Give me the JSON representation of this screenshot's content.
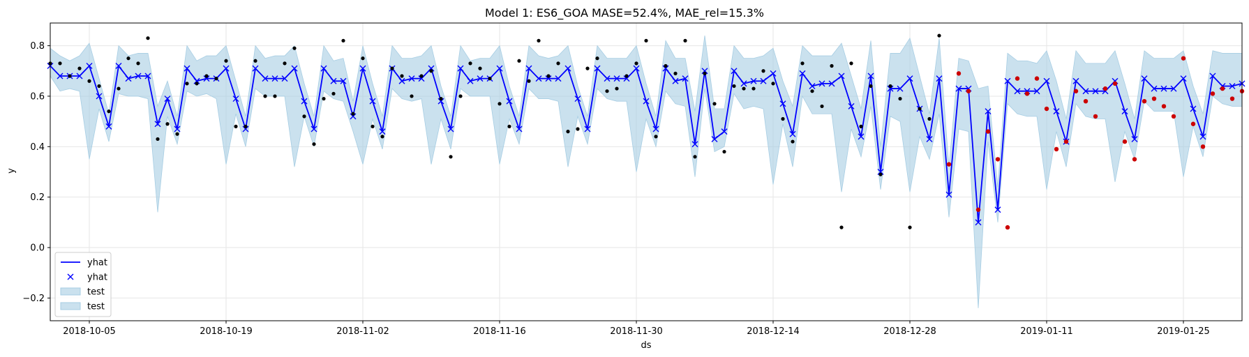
{
  "chart_data": {
    "type": "line",
    "title": "Model 1: ES6_GOA MASE=52.4%, MAE_rel=15.3%",
    "xlabel": "ds",
    "ylabel": "y",
    "x_start": "2018-10-01",
    "xlim": [
      "2018-10-01",
      "2019-01-31"
    ],
    "ylim": [
      -0.29,
      0.89
    ],
    "x_ticks": [
      "2018-10-05",
      "2018-10-19",
      "2018-11-02",
      "2018-11-16",
      "2018-11-30",
      "2018-12-14",
      "2018-12-28",
      "2019-01-11",
      "2019-01-25"
    ],
    "y_ticks": [
      -0.2,
      0.0,
      0.2,
      0.4,
      0.6,
      0.8
    ],
    "y_tick_labels": [
      "−0.2",
      "0.0",
      "0.2",
      "0.4",
      "0.6",
      "0.8"
    ],
    "grid": true,
    "legend_position": "lower-left",
    "legend": [
      {
        "label": "yhat",
        "kind": "line"
      },
      {
        "label": "yhat",
        "kind": "marker"
      },
      {
        "label": "test",
        "kind": "band"
      },
      {
        "label": "test",
        "kind": "band"
      }
    ],
    "colors": {
      "yhat": "#0000ff",
      "band": "#a6cde3",
      "train_points": "#000000",
      "test_points": "#cc0000",
      "grid": "#e6e6e6"
    },
    "series": [
      {
        "name": "yhat",
        "x": [
          "2018-10-01",
          "2018-10-02",
          "2018-10-03",
          "2018-10-04",
          "2018-10-05",
          "2018-10-06",
          "2018-10-07",
          "2018-10-08",
          "2018-10-09",
          "2018-10-10",
          "2018-10-11",
          "2018-10-12",
          "2018-10-13",
          "2018-10-14",
          "2018-10-15",
          "2018-10-16",
          "2018-10-17",
          "2018-10-18",
          "2018-10-19",
          "2018-10-20",
          "2018-10-21",
          "2018-10-22",
          "2018-10-23",
          "2018-10-24",
          "2018-10-25",
          "2018-10-26",
          "2018-10-27",
          "2018-10-28",
          "2018-10-29",
          "2018-10-30",
          "2018-10-31",
          "2018-11-01",
          "2018-11-02",
          "2018-11-03",
          "2018-11-04",
          "2018-11-05",
          "2018-11-06",
          "2018-11-07",
          "2018-11-08",
          "2018-11-09",
          "2018-11-10",
          "2018-11-11",
          "2018-11-12",
          "2018-11-13",
          "2018-11-14",
          "2018-11-15",
          "2018-11-16",
          "2018-11-17",
          "2018-11-18",
          "2018-11-19",
          "2018-11-20",
          "2018-11-21",
          "2018-11-22",
          "2018-11-23",
          "2018-11-24",
          "2018-11-25",
          "2018-11-26",
          "2018-11-27",
          "2018-11-28",
          "2018-11-29",
          "2018-11-30",
          "2018-12-01",
          "2018-12-02",
          "2018-12-03",
          "2018-12-04",
          "2018-12-05",
          "2018-12-06",
          "2018-12-07",
          "2018-12-08",
          "2018-12-09",
          "2018-12-10",
          "2018-12-11",
          "2018-12-12",
          "2018-12-13",
          "2018-12-14",
          "2018-12-15",
          "2018-12-16",
          "2018-12-17",
          "2018-12-18",
          "2018-12-19",
          "2018-12-20",
          "2018-12-21",
          "2018-12-22",
          "2018-12-23",
          "2018-12-24",
          "2018-12-25",
          "2018-12-26",
          "2018-12-27",
          "2018-12-28",
          "2018-12-29",
          "2018-12-30",
          "2018-12-31",
          "2019-01-01",
          "2019-01-02",
          "2019-01-03",
          "2019-01-04",
          "2019-01-05",
          "2019-01-06",
          "2019-01-07",
          "2019-01-08",
          "2019-01-09",
          "2019-01-10",
          "2019-01-11",
          "2019-01-12",
          "2019-01-13",
          "2019-01-14",
          "2019-01-15",
          "2019-01-16",
          "2019-01-17",
          "2019-01-18",
          "2019-01-19",
          "2019-01-20",
          "2019-01-21",
          "2019-01-22",
          "2019-01-23",
          "2019-01-24",
          "2019-01-25",
          "2019-01-26",
          "2019-01-27",
          "2019-01-28",
          "2019-01-29",
          "2019-01-30",
          "2019-01-31"
        ],
        "values": [
          0.72,
          0.68,
          0.68,
          0.68,
          0.72,
          0.6,
          0.48,
          0.72,
          0.67,
          0.68,
          0.68,
          0.49,
          0.59,
          0.47,
          0.71,
          0.66,
          0.67,
          0.67,
          0.71,
          0.59,
          0.47,
          0.71,
          0.67,
          0.67,
          0.67,
          0.71,
          0.58,
          0.47,
          0.71,
          0.66,
          0.66,
          0.52,
          0.71,
          0.58,
          0.46,
          0.71,
          0.66,
          0.67,
          0.67,
          0.71,
          0.58,
          0.47,
          0.71,
          0.66,
          0.67,
          0.67,
          0.71,
          0.58,
          0.47,
          0.71,
          0.67,
          0.67,
          0.67,
          0.71,
          0.59,
          0.47,
          0.71,
          0.67,
          0.67,
          0.67,
          0.71,
          0.58,
          0.47,
          0.71,
          0.66,
          0.67,
          0.41,
          0.7,
          0.43,
          0.46,
          0.7,
          0.65,
          0.66,
          0.66,
          0.69,
          0.57,
          0.45,
          0.69,
          0.64,
          0.65,
          0.65,
          0.68,
          0.56,
          0.44,
          0.68,
          0.3,
          0.63,
          0.63,
          0.67,
          0.55,
          0.43,
          0.67,
          0.21,
          0.63,
          0.63,
          0.1,
          0.54,
          0.15,
          0.66,
          0.62,
          0.62,
          0.62,
          0.66,
          0.54,
          0.42,
          0.66,
          0.62,
          0.62,
          0.62,
          0.66,
          0.54,
          0.43,
          0.67,
          0.63,
          0.63,
          0.63,
          0.67,
          0.55,
          0.44,
          0.68,
          0.64,
          0.64,
          0.65
        ]
      },
      {
        "name": "band_lower",
        "values": [
          0.68,
          0.62,
          0.63,
          0.62,
          0.35,
          0.55,
          0.42,
          0.61,
          0.6,
          0.6,
          0.59,
          0.14,
          0.52,
          0.41,
          0.62,
          0.6,
          0.61,
          0.59,
          0.33,
          0.53,
          0.4,
          0.63,
          0.6,
          0.6,
          0.6,
          0.32,
          0.52,
          0.4,
          0.62,
          0.59,
          0.58,
          0.46,
          0.33,
          0.51,
          0.39,
          0.63,
          0.59,
          0.58,
          0.59,
          0.33,
          0.51,
          0.39,
          0.63,
          0.6,
          0.6,
          0.6,
          0.33,
          0.51,
          0.41,
          0.63,
          0.59,
          0.59,
          0.58,
          0.32,
          0.52,
          0.41,
          0.63,
          0.59,
          0.58,
          0.58,
          0.3,
          0.51,
          0.4,
          0.62,
          0.57,
          0.56,
          0.28,
          0.63,
          0.38,
          0.4,
          0.61,
          0.55,
          0.56,
          0.55,
          0.25,
          0.49,
          0.32,
          0.6,
          0.53,
          0.53,
          0.53,
          0.22,
          0.47,
          0.36,
          0.56,
          0.23,
          0.52,
          0.5,
          0.22,
          0.44,
          0.35,
          0.53,
          0.12,
          0.47,
          0.46,
          -0.24,
          0.42,
          0.1,
          0.57,
          0.53,
          0.52,
          0.52,
          0.23,
          0.46,
          0.32,
          0.57,
          0.52,
          0.51,
          0.51,
          0.26,
          0.46,
          0.35,
          0.58,
          0.54,
          0.54,
          0.54,
          0.28,
          0.48,
          0.36,
          0.6,
          0.57,
          0.56,
          0.56
        ]
      },
      {
        "name": "band_upper",
        "values": [
          0.79,
          0.76,
          0.74,
          0.76,
          0.81,
          0.67,
          0.53,
          0.8,
          0.76,
          0.77,
          0.77,
          0.56,
          0.66,
          0.52,
          0.8,
          0.74,
          0.76,
          0.76,
          0.8,
          0.66,
          0.52,
          0.8,
          0.75,
          0.76,
          0.76,
          0.8,
          0.65,
          0.52,
          0.8,
          0.74,
          0.75,
          0.58,
          0.8,
          0.65,
          0.52,
          0.8,
          0.75,
          0.75,
          0.76,
          0.8,
          0.64,
          0.52,
          0.8,
          0.74,
          0.75,
          0.75,
          0.8,
          0.64,
          0.52,
          0.8,
          0.76,
          0.75,
          0.76,
          0.8,
          0.64,
          0.52,
          0.8,
          0.75,
          0.75,
          0.75,
          0.8,
          0.65,
          0.52,
          0.82,
          0.75,
          0.75,
          0.54,
          0.84,
          0.55,
          0.55,
          0.8,
          0.75,
          0.75,
          0.76,
          0.79,
          0.66,
          0.56,
          0.8,
          0.76,
          0.76,
          0.76,
          0.81,
          0.68,
          0.55,
          0.82,
          0.4,
          0.77,
          0.77,
          0.83,
          0.68,
          0.53,
          0.83,
          0.32,
          0.75,
          0.74,
          0.63,
          0.64,
          0.24,
          0.77,
          0.74,
          0.74,
          0.73,
          0.78,
          0.66,
          0.51,
          0.78,
          0.73,
          0.73,
          0.73,
          0.78,
          0.65,
          0.51,
          0.78,
          0.75,
          0.75,
          0.75,
          0.78,
          0.64,
          0.53,
          0.78,
          0.77,
          0.77,
          0.77
        ]
      },
      {
        "name": "actual",
        "values": [
          0.73,
          0.73,
          0.68,
          0.71,
          0.66,
          0.64,
          0.54,
          0.63,
          0.75,
          0.73,
          0.83,
          0.43,
          0.49,
          0.45,
          0.65,
          0.65,
          0.68,
          0.67,
          0.74,
          0.48,
          0.48,
          0.74,
          0.6,
          0.6,
          0.73,
          0.79,
          0.52,
          0.41,
          0.59,
          0.61,
          0.82,
          0.53,
          0.75,
          0.48,
          0.44,
          0.71,
          0.68,
          0.6,
          0.68,
          0.7,
          0.59,
          0.36,
          0.6,
          0.73,
          0.71,
          0.67,
          0.57,
          0.48,
          0.74,
          0.66,
          0.82,
          0.68,
          0.73,
          0.46,
          0.47,
          0.71,
          0.75,
          0.62,
          0.63,
          0.68,
          0.73,
          0.82,
          0.44,
          0.72,
          0.69,
          0.82,
          0.36,
          0.69,
          0.57,
          0.38,
          0.64,
          0.63,
          0.63,
          0.7,
          0.65,
          0.51,
          0.42,
          0.73,
          0.62,
          0.56,
          0.72,
          0.08,
          0.73,
          0.48,
          0.64,
          0.29,
          0.64,
          0.59,
          0.08,
          0.55,
          0.51,
          0.84,
          0.33,
          0.69,
          0.62,
          0.15,
          0.46,
          0.35,
          0.08,
          0.67,
          0.61,
          0.67,
          0.55,
          0.39,
          0.42,
          0.62,
          0.58,
          0.52,
          0.63,
          0.65,
          0.42,
          0.35,
          0.58,
          0.59,
          0.56,
          0.52,
          0.75,
          0.49,
          0.4,
          0.61,
          0.63,
          0.59,
          0.62
        ]
      }
    ],
    "test_start": "2019-01-01"
  }
}
